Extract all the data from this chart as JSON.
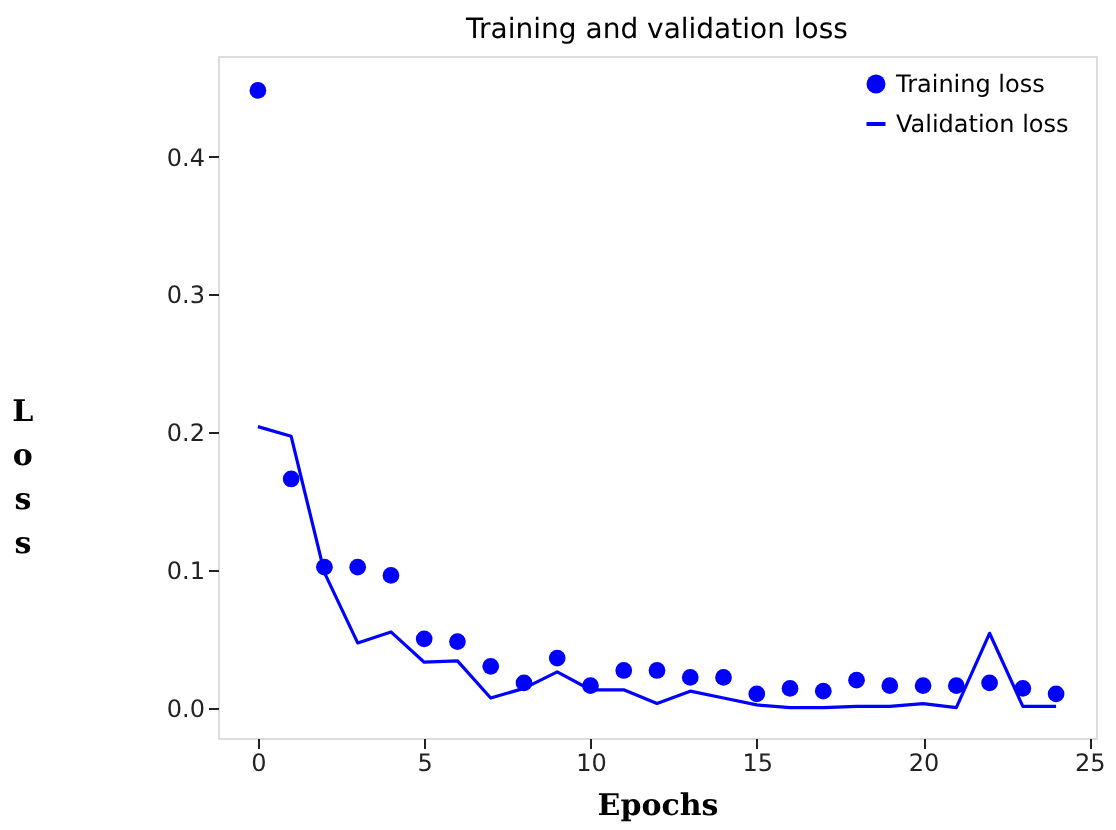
{
  "chart_data": {
    "type": "line",
    "title": "Training and validation loss",
    "xlabel": "Epochs",
    "ylabel": "Loss",
    "x": [
      0,
      1,
      2,
      3,
      4,
      5,
      6,
      7,
      8,
      9,
      10,
      11,
      12,
      13,
      14,
      15,
      16,
      17,
      18,
      19,
      20,
      21,
      22,
      23,
      24
    ],
    "series": [
      {
        "name": "Training loss",
        "type": "scatter",
        "marker": "circle",
        "color": "#0000ff",
        "values": [
          0.448,
          0.166,
          0.102,
          0.102,
          0.096,
          0.05,
          0.048,
          0.03,
          0.018,
          0.036,
          0.016,
          0.027,
          0.027,
          0.022,
          0.022,
          0.01,
          0.014,
          0.012,
          0.02,
          0.016,
          0.016,
          0.016,
          0.018,
          0.014,
          0.01
        ]
      },
      {
        "name": "Validation loss",
        "type": "line",
        "color": "#0000ff",
        "line_style": "solid",
        "values": [
          0.204,
          0.197,
          0.098,
          0.047,
          0.055,
          0.033,
          0.034,
          0.007,
          0.014,
          0.026,
          0.013,
          0.013,
          0.003,
          0.012,
          0.007,
          0.002,
          0.0,
          0.0,
          0.001,
          0.001,
          0.003,
          0.0,
          0.054,
          0.001,
          0.001
        ]
      }
    ],
    "xlim": [
      -1.2,
      25.2
    ],
    "xticks": [
      0,
      5,
      10,
      15,
      20,
      25
    ],
    "ylim": [
      -0.022,
      0.473
    ],
    "yticks": [
      {
        "value": 0,
        "label": "0.0"
      },
      0.1,
      0.2,
      0.3,
      0.4
    ],
    "grid": false,
    "legend": "top right"
  }
}
